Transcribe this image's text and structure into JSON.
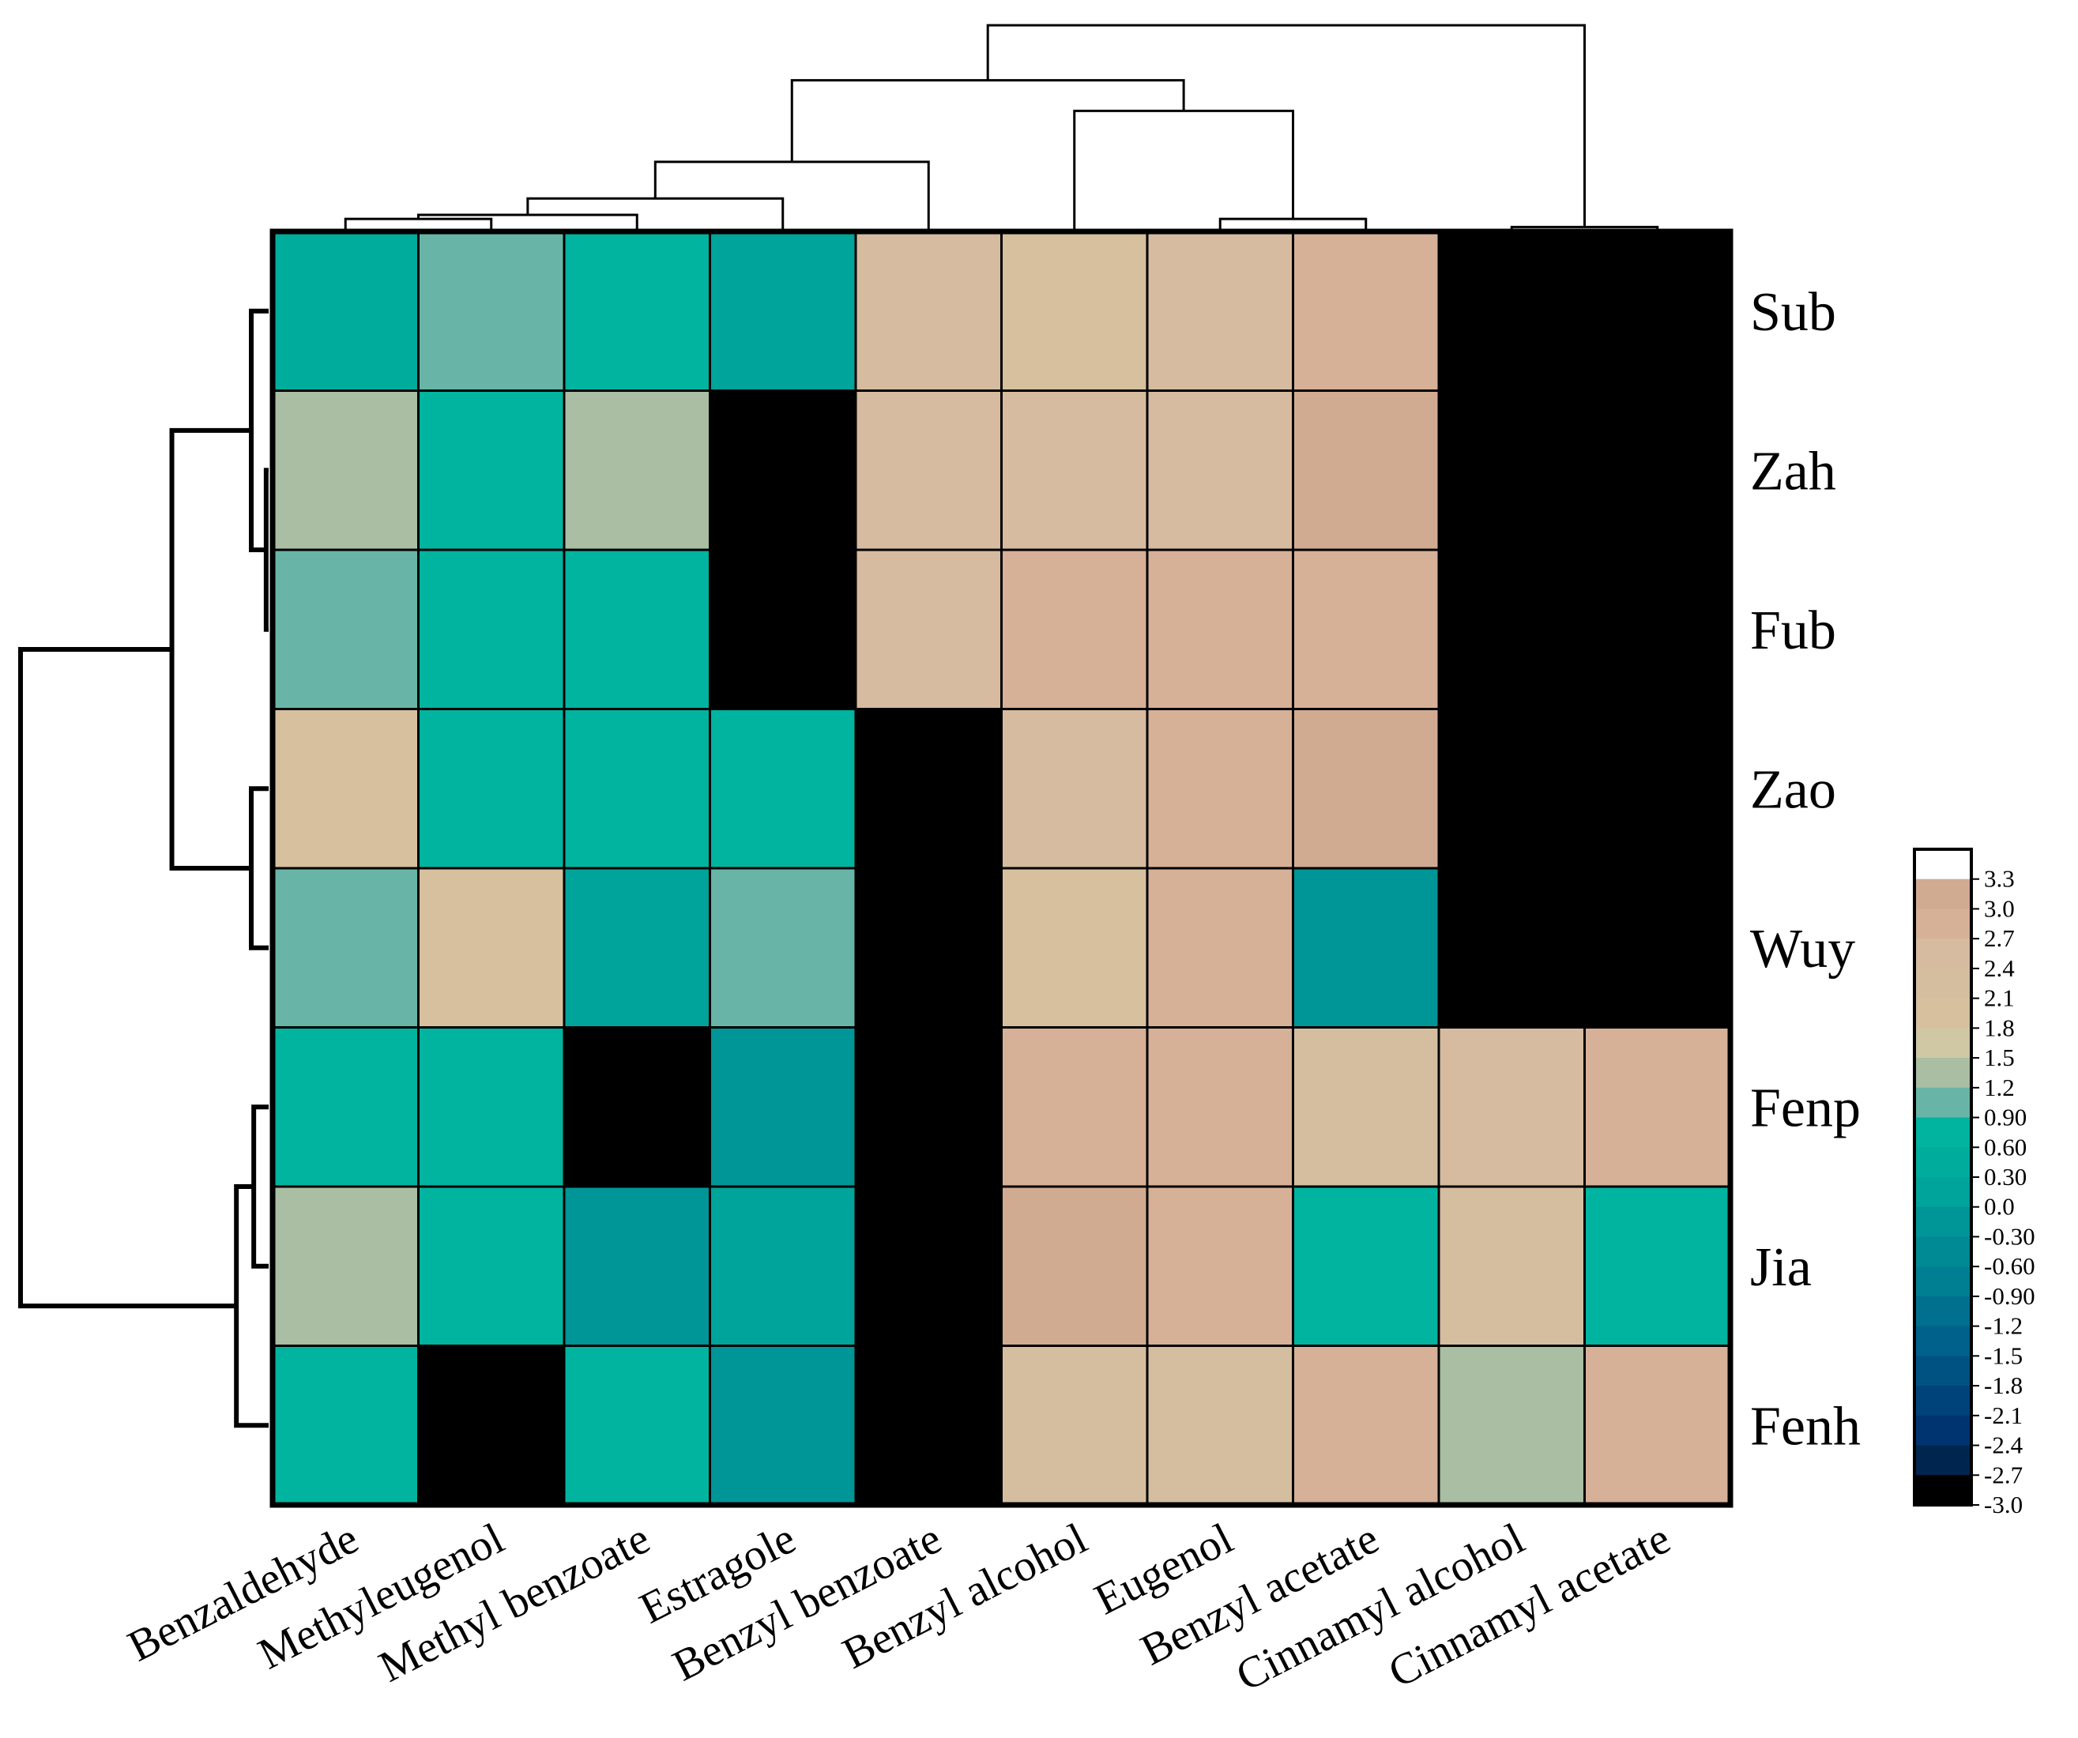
{
  "chart_data": {
    "type": "heatmap",
    "title": "",
    "columns": [
      "Benzaldehyde",
      "Methyleugenol",
      "Methyl benzoate",
      "Estragole",
      "Benzyl benzoate",
      "Benzyl alcohol",
      "Eugenol",
      "Benzyl acetate",
      "Cinnamyl alcohol",
      "Cinnamyl acetate"
    ],
    "rows": [
      "Sub",
      "Zah",
      "Fub",
      "Zao",
      "Wuy",
      "Fenp",
      "Jia",
      "Fenh"
    ],
    "values": [
      [
        0.3,
        1.0,
        0.6,
        0.2,
        2.4,
        1.9,
        2.4,
        2.8,
        -2.8,
        -2.8
      ],
      [
        1.4,
        0.6,
        1.4,
        -2.8,
        2.6,
        2.5,
        2.4,
        3.0,
        -2.8,
        -2.8
      ],
      [
        1.0,
        0.6,
        0.6,
        -2.8,
        2.6,
        2.7,
        2.7,
        2.8,
        -2.8,
        -2.8
      ],
      [
        1.9,
        0.6,
        0.6,
        0.6,
        -2.8,
        2.5,
        2.8,
        3.0,
        -2.8,
        -2.8
      ],
      [
        1.0,
        1.9,
        0.0,
        1.1,
        -2.8,
        1.8,
        2.8,
        -0.2,
        -2.8,
        -2.8
      ],
      [
        0.6,
        0.6,
        -2.8,
        -0.3,
        -2.8,
        2.8,
        2.8,
        2.3,
        2.6,
        2.8
      ],
      [
        1.4,
        0.6,
        -0.1,
        0.0,
        -2.8,
        3.0,
        2.8,
        0.6,
        2.3,
        0.6
      ],
      [
        0.6,
        -2.8,
        0.6,
        -0.3,
        -2.8,
        2.3,
        2.3,
        2.8,
        1.4,
        2.8
      ]
    ],
    "color_scale": {
      "min": -3.0,
      "max": 3.3,
      "tick_labels": [
        "3.3",
        "3.0",
        "2.7",
        "2.4",
        "2.1",
        "1.8",
        "1.5",
        "1.2",
        "0.90",
        "0.60",
        "0.30",
        "0.0",
        "-0.30",
        "-0.60",
        "-0.90",
        "-1.2",
        "-1.5",
        "-1.8",
        "-2.1",
        "-2.4",
        "-2.7",
        "-3.0"
      ],
      "bands": [
        {
          "min": 3.3,
          "color": "#ffffff"
        },
        {
          "min": 3.0,
          "color": "#d0ab92"
        },
        {
          "min": 2.7,
          "color": "#d6b097"
        },
        {
          "min": 2.4,
          "color": "#d6bba0"
        },
        {
          "min": 2.1,
          "color": "#d5bea0"
        },
        {
          "min": 1.8,
          "color": "#d6c09e"
        },
        {
          "min": 1.5,
          "color": "#d0c8a5"
        },
        {
          "min": 1.2,
          "color": "#a9bea3"
        },
        {
          "min": 0.9,
          "color": "#68b5a7"
        },
        {
          "min": 0.6,
          "color": "#00b4a0"
        },
        {
          "min": 0.3,
          "color": "#00ad9c"
        },
        {
          "min": 0.0,
          "color": "#00a49a"
        },
        {
          "min": -0.3,
          "color": "#009596"
        },
        {
          "min": -0.6,
          "color": "#008a94"
        },
        {
          "min": -0.9,
          "color": "#007f92"
        },
        {
          "min": -1.2,
          "color": "#00708e"
        },
        {
          "min": -1.5,
          "color": "#00618a"
        },
        {
          "min": -1.8,
          "color": "#005282"
        },
        {
          "min": -2.1,
          "color": "#00437a"
        },
        {
          "min": -2.4,
          "color": "#003470"
        },
        {
          "min": -2.7,
          "color": "#00254f"
        },
        {
          "min": -3.0,
          "color": "#000000"
        }
      ]
    },
    "column_dendrogram": {
      "order": [
        "Benzaldehyde",
        "Methyleugenol",
        "Methyl benzoate",
        "Estragole",
        "Benzyl benzoate",
        "Benzyl alcohol",
        "Eugenol",
        "Benzyl acetate",
        "Cinnamyl alcohol",
        "Cinnamyl acetate"
      ],
      "merges": [
        [
          0,
          1,
          0.05
        ],
        [
          10,
          2,
          0.07
        ],
        [
          11,
          3,
          0.15
        ],
        [
          12,
          4,
          0.33
        ],
        [
          6,
          7,
          0.05
        ],
        [
          14,
          5,
          0.58
        ],
        [
          13,
          15,
          0.73
        ],
        [
          8,
          9,
          0.01
        ],
        [
          16,
          17,
          1.0
        ]
      ]
    },
    "row_dendrogram": {
      "order": [
        "Sub",
        "Zah",
        "Fub",
        "Zao",
        "Wuy",
        "Fenp",
        "Jia",
        "Fenh"
      ],
      "merges": [
        [
          1,
          2,
          0.01
        ],
        [
          0,
          8,
          0.07
        ],
        [
          3,
          4,
          0.07
        ],
        [
          9,
          10,
          0.39
        ],
        [
          5,
          6,
          0.06
        ],
        [
          12,
          7,
          0.13
        ],
        [
          11,
          13,
          1.0
        ]
      ]
    }
  }
}
